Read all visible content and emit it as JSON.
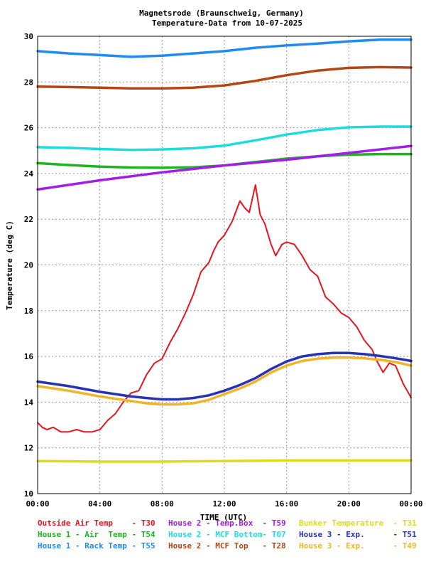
{
  "chart_data": {
    "type": "line",
    "title": [
      "Magnetsrode (Braunschweig, Germany)",
      "Temperature-Data from 10-07-2025"
    ],
    "xlabel": "TIME (UTC)",
    "ylabel": "Temperature (deg C)",
    "x_range_hours": [
      0,
      24
    ],
    "ylim": [
      10,
      30
    ],
    "x_ticks": [
      {
        "hour": 0,
        "label": "00:00"
      },
      {
        "hour": 4,
        "label": "04:00"
      },
      {
        "hour": 8,
        "label": "08:00"
      },
      {
        "hour": 12,
        "label": "12:00"
      },
      {
        "hour": 16,
        "label": "16:00"
      },
      {
        "hour": 20,
        "label": "20:00"
      },
      {
        "hour": 24,
        "label": "00:00"
      }
    ],
    "y_ticks": [
      10,
      12,
      14,
      16,
      18,
      20,
      22,
      24,
      26,
      28,
      30
    ],
    "grid": true,
    "legend_placement": "bottom",
    "series": [
      {
        "name": "Outside Air Temp",
        "code": "T30",
        "color": "#e8141e",
        "x": [
          0,
          0.3,
          0.6,
          1.0,
          1.5,
          2.0,
          2.5,
          3.0,
          3.5,
          4.0,
          4.5,
          5.0,
          5.5,
          6.0,
          6.5,
          7.0,
          7.5,
          8.0,
          8.5,
          9.0,
          9.5,
          10.0,
          10.5,
          11.0,
          11.3,
          11.6,
          12.0,
          12.5,
          13.0,
          13.3,
          13.6,
          14.0,
          14.3,
          14.6,
          15.0,
          15.3,
          15.7,
          16.0,
          16.5,
          17.0,
          17.5,
          18.0,
          18.5,
          19.0,
          19.5,
          20.0,
          20.5,
          21.0,
          21.5,
          21.8,
          22.2,
          22.6,
          23.0,
          23.5,
          24.0
        ],
        "values": [
          13.1,
          12.9,
          12.8,
          12.9,
          12.7,
          12.7,
          12.8,
          12.7,
          12.7,
          12.8,
          13.2,
          13.5,
          14.0,
          14.4,
          14.5,
          15.2,
          15.7,
          15.9,
          16.6,
          17.2,
          17.9,
          18.7,
          19.7,
          20.1,
          20.6,
          21.0,
          21.3,
          21.9,
          22.8,
          22.5,
          22.3,
          23.5,
          22.2,
          21.8,
          20.9,
          20.4,
          20.9,
          21.0,
          20.9,
          20.4,
          19.8,
          19.5,
          18.6,
          18.3,
          17.9,
          17.7,
          17.3,
          16.7,
          16.3,
          15.8,
          15.3,
          15.7,
          15.6,
          14.8,
          14.2
        ]
      },
      {
        "name": "House 1 - Air  Temp",
        "code": "T54",
        "color": "#1eb41e",
        "x": [
          0,
          2,
          4,
          6,
          8,
          10,
          12,
          14,
          16,
          18,
          20,
          22,
          24
        ],
        "values": [
          24.45,
          24.37,
          24.3,
          24.26,
          24.25,
          24.27,
          24.35,
          24.5,
          24.65,
          24.75,
          24.82,
          24.85,
          24.85
        ]
      },
      {
        "name": "House 1 - Rack Temp",
        "code": "T55",
        "color": "#1e8cf0",
        "x": [
          0,
          2,
          4,
          6,
          8,
          10,
          12,
          14,
          16,
          18,
          20,
          22,
          24
        ],
        "values": [
          29.35,
          29.25,
          29.18,
          29.1,
          29.15,
          29.25,
          29.35,
          29.5,
          29.6,
          29.68,
          29.78,
          29.85,
          29.85
        ]
      },
      {
        "name": "House 2 - Temp.Box",
        "code": "T59",
        "color": "#a01ee6",
        "x": [
          0,
          4,
          8,
          12,
          16,
          20,
          24
        ],
        "values": [
          23.3,
          23.7,
          24.05,
          24.35,
          24.6,
          24.9,
          25.2
        ]
      },
      {
        "name": "House 2 - MCF Bottom",
        "code": "T07",
        "color": "#1edcdc",
        "x": [
          0,
          2,
          4,
          6,
          8,
          10,
          12,
          14,
          16,
          18,
          20,
          22,
          24
        ],
        "values": [
          25.15,
          25.12,
          25.07,
          25.03,
          25.05,
          25.1,
          25.22,
          25.45,
          25.7,
          25.9,
          26.02,
          26.05,
          26.05
        ]
      },
      {
        "name": "House 2 - MCF Top",
        "code": "T28",
        "color": "#b44614",
        "x": [
          0,
          2,
          4,
          6,
          8,
          10,
          12,
          14,
          16,
          18,
          20,
          22,
          24
        ],
        "values": [
          27.8,
          27.78,
          27.75,
          27.72,
          27.72,
          27.75,
          27.85,
          28.05,
          28.3,
          28.5,
          28.62,
          28.65,
          28.63
        ]
      },
      {
        "name": "Bunker Temperature",
        "code": "T31",
        "color": "#dcdc1e",
        "x": [
          0,
          4,
          8,
          12,
          16,
          20,
          24
        ],
        "values": [
          11.42,
          11.4,
          11.4,
          11.42,
          11.45,
          11.45,
          11.45
        ]
      },
      {
        "name": "House 3 - Exp.",
        "code": "T51",
        "color": "#2832b4",
        "x": [
          0,
          2,
          4,
          6,
          7,
          8,
          9,
          10,
          11,
          12,
          13,
          14,
          15,
          16,
          17,
          18,
          19,
          20,
          21,
          22,
          23,
          24
        ],
        "values": [
          14.9,
          14.7,
          14.45,
          14.25,
          14.18,
          14.12,
          14.12,
          14.18,
          14.3,
          14.5,
          14.75,
          15.05,
          15.45,
          15.78,
          16.0,
          16.1,
          16.15,
          16.15,
          16.1,
          16.02,
          15.92,
          15.8
        ]
      },
      {
        "name": "House 3 - Exp.",
        "code": "T49",
        "color": "#f0b428",
        "x": [
          0,
          2,
          4,
          6,
          7,
          8,
          9,
          10,
          11,
          12,
          13,
          14,
          15,
          16,
          17,
          18,
          19,
          20,
          21,
          22,
          23,
          24
        ],
        "values": [
          14.7,
          14.5,
          14.25,
          14.05,
          13.95,
          13.9,
          13.9,
          13.95,
          14.1,
          14.35,
          14.6,
          14.9,
          15.3,
          15.6,
          15.8,
          15.9,
          15.95,
          15.95,
          15.92,
          15.85,
          15.75,
          15.6
        ]
      }
    ],
    "legend_rows": [
      [
        {
          "text": "Outside Air Temp    - T30",
          "color": "#e8141e"
        },
        {
          "text": "House 2 - Temp.Box  - T59",
          "color": "#a01ee6"
        },
        {
          "text": "Bunker Temperature  - T31",
          "color": "#dcdc1e"
        }
      ],
      [
        {
          "text": "House 1 - Air  Temp - T54",
          "color": "#1eb41e"
        },
        {
          "text": "House 2 - MCF Bottom- T07",
          "color": "#1edcdc"
        },
        {
          "text": "House 3 - Exp.      - T51",
          "color": "#2832b4"
        }
      ],
      [
        {
          "text": "House 1 - Rack Temp - T55",
          "color": "#1e8cf0"
        },
        {
          "text": "House 2 - MCF Top   - T28",
          "color": "#b44614"
        },
        {
          "text": "House 3 - Exp.      - T49",
          "color": "#f0b428"
        }
      ]
    ]
  }
}
